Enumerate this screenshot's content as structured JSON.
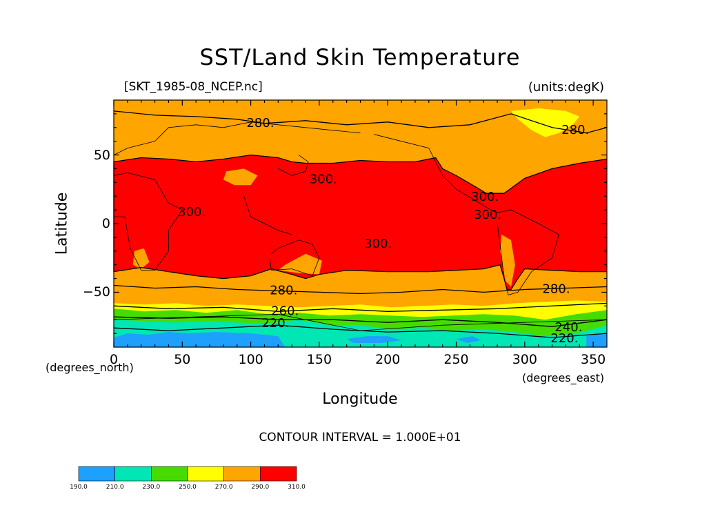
{
  "figure": {
    "title": "SST/Land Skin Temperature",
    "file_label": "[SKT_1985-08_NCEP.nc]",
    "units_label": "(units:degK)",
    "x_axis_label": "Longitude",
    "y_axis_label": "Latitude",
    "x_unit_label": "(degrees_east)",
    "y_unit_label": "(degrees_north)",
    "contour_interval_text": "CONTOUR INTERVAL = 1.000E+01"
  },
  "map": {
    "x_range": [
      0,
      360
    ],
    "y_range": [
      -90,
      90
    ],
    "x_ticks": [
      "0",
      "50",
      "100",
      "150",
      "200",
      "250",
      "300",
      "350"
    ],
    "x_tick_values": [
      0,
      50,
      100,
      150,
      200,
      250,
      300,
      350
    ],
    "y_ticks": [
      "50",
      "0",
      "−50"
    ],
    "y_tick_values": [
      50,
      0,
      -50
    ],
    "bands": [
      {
        "min": 190,
        "max": 210,
        "color": "#1ea0ff"
      },
      {
        "min": 210,
        "max": 230,
        "color": "#00e6b4"
      },
      {
        "min": 230,
        "max": 250,
        "color": "#46dc00"
      },
      {
        "min": 250,
        "max": 270,
        "color": "#ffff00"
      },
      {
        "min": 270,
        "max": 290,
        "color": "#ffa500"
      },
      {
        "min": 290,
        "max": 310,
        "color": "#ff0000"
      }
    ],
    "contour_labels": [
      {
        "text": "280.",
        "lon": 107,
        "lat": 73
      },
      {
        "text": "280.",
        "lon": 337,
        "lat": 68
      },
      {
        "text": "300.",
        "lon": 153,
        "lat": 32
      },
      {
        "text": "300.",
        "lon": 57,
        "lat": 8
      },
      {
        "text": "300.",
        "lon": 271,
        "lat": 19
      },
      {
        "text": "300.",
        "lon": 273,
        "lat": 6
      },
      {
        "text": "300.",
        "lon": 193,
        "lat": -15
      },
      {
        "text": "280.",
        "lon": 124,
        "lat": -49
      },
      {
        "text": "280.",
        "lon": 323,
        "lat": -48
      },
      {
        "text": "260.",
        "lon": 125,
        "lat": -64
      },
      {
        "text": "220.",
        "lon": 118,
        "lat": -73
      },
      {
        "text": "240.",
        "lon": 332,
        "lat": -76
      },
      {
        "text": "220.",
        "lon": 329,
        "lat": -84
      }
    ]
  },
  "colorbar": {
    "labels": [
      "190.0",
      "210.0",
      "230.0",
      "250.0",
      "270.0",
      "290.0",
      "310.0"
    ],
    "colors": [
      "#1ea0ff",
      "#00e6b4",
      "#46dc00",
      "#ffff00",
      "#ffa500",
      "#ff0000"
    ]
  }
}
